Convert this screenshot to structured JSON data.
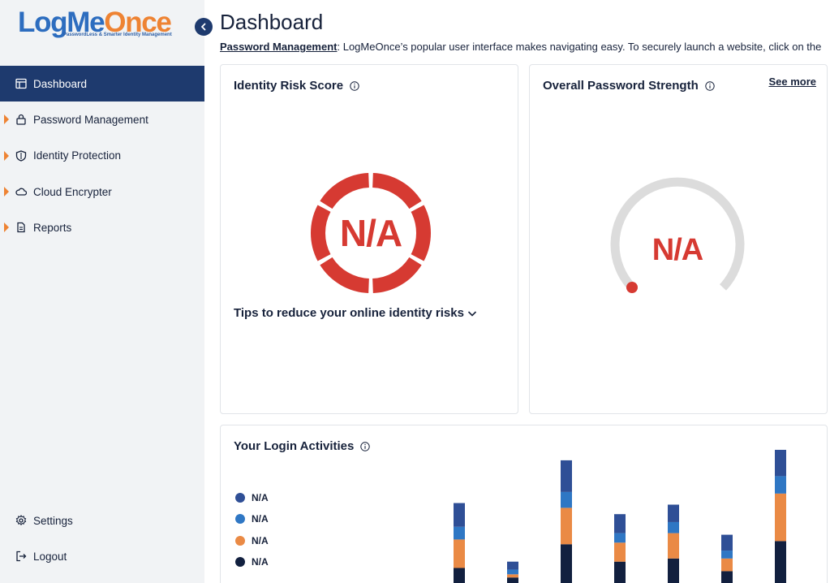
{
  "brand": {
    "logo_part1": "LogMe",
    "logo_part2": "Once",
    "tagline": "PasswordLess & Smarter Identity Management",
    "colors": {
      "navy": "#1e3a6e",
      "blue": "#2d6dbf",
      "orange": "#ee8333",
      "red": "#d63a32"
    }
  },
  "sidebar": {
    "collapse_icon": "chevron-left-icon",
    "items": [
      {
        "label": "Dashboard",
        "icon": "dashboard-icon",
        "active": true,
        "expandable": false
      },
      {
        "label": "Password Management",
        "icon": "lock-icon",
        "active": false,
        "expandable": true
      },
      {
        "label": "Identity Protection",
        "icon": "shield-icon",
        "active": false,
        "expandable": true
      },
      {
        "label": "Cloud Encrypter",
        "icon": "cloud-icon",
        "active": false,
        "expandable": true
      },
      {
        "label": "Reports",
        "icon": "document-icon",
        "active": false,
        "expandable": true
      }
    ],
    "bottom_items": [
      {
        "label": "Settings",
        "icon": "gear-icon"
      },
      {
        "label": "Logout",
        "icon": "logout-icon"
      }
    ]
  },
  "header": {
    "title": "Dashboard",
    "intro_link": "Password Management",
    "intro_text": ": LogMeOnce’s popular user interface makes navigating easy. To securely launch a website, click on the"
  },
  "identity_risk": {
    "title": "Identity Risk Score",
    "value": "N/A",
    "tips": "Tips to reduce your online identity risks"
  },
  "password_strength": {
    "title": "Overall Password Strength",
    "see_more": "See more",
    "value": "N/A"
  },
  "login_activities": {
    "title": "Your Login Activities",
    "legend": [
      {
        "label": "N/A",
        "color": "#2f4f96"
      },
      {
        "label": "N/A",
        "color": "#2f77c4"
      },
      {
        "label": "N/A",
        "color": "#ea8a45"
      },
      {
        "label": "N/A",
        "color": "#12203f"
      }
    ],
    "chart_data": {
      "type": "bar",
      "stacked": true,
      "title": "",
      "xlabel": "",
      "ylabel": "",
      "categories": [
        "",
        "",
        "",
        "",
        "",
        "",
        ""
      ],
      "series": [
        {
          "values": [
            15,
            5,
            20,
            12,
            11,
            10,
            19
          ]
        },
        {
          "values": [
            8,
            3,
            10,
            6,
            7,
            5,
            11
          ]
        },
        {
          "values": [
            18,
            2,
            23,
            12,
            16,
            8,
            30
          ]
        },
        {
          "values": [
            10,
            4,
            25,
            14,
            16,
            8,
            27
          ]
        }
      ]
    }
  }
}
